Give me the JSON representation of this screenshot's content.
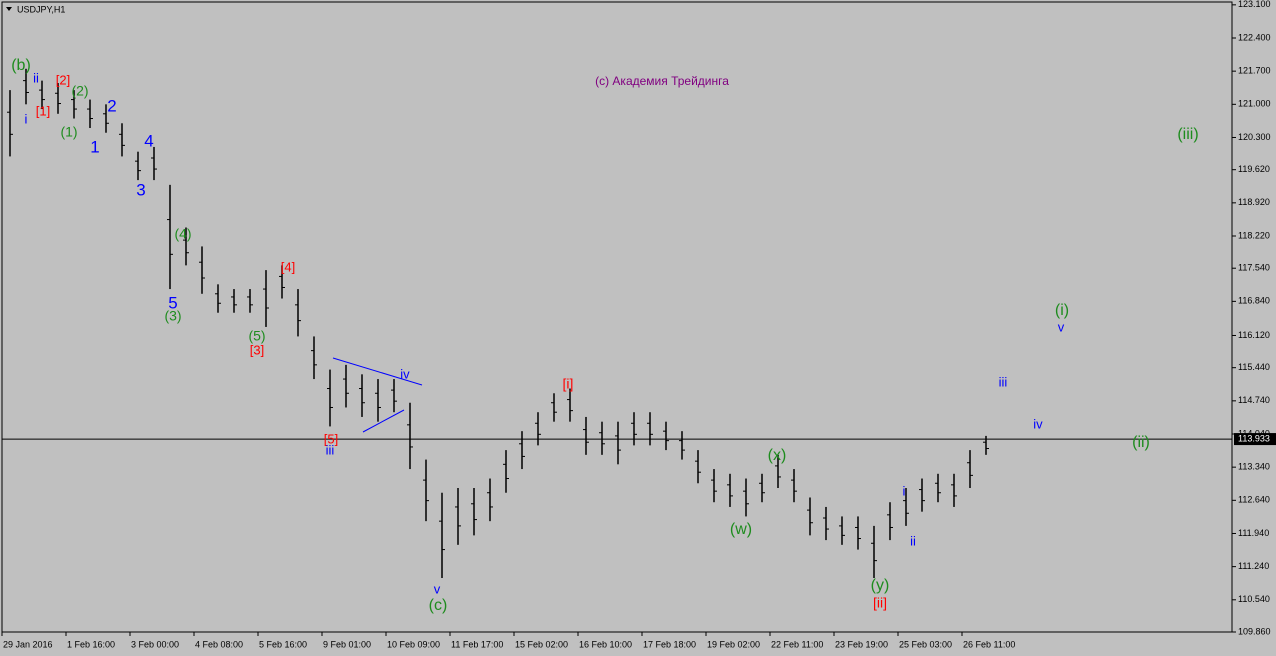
{
  "chart_data": {
    "type": "hlbar",
    "title": "USDJPY,H1",
    "color": "#000000",
    "xlim": [
      0,
      76.875
    ],
    "xticks": [
      {
        "value": 0,
        "label": "29 Jan 2016"
      },
      {
        "value": 4,
        "label": "1 Feb 16:00"
      },
      {
        "value": 8,
        "label": "3 Feb 00:00"
      },
      {
        "value": 12,
        "label": "4 Feb 08:00"
      },
      {
        "value": 16,
        "label": "5 Feb 16:00"
      },
      {
        "value": 20,
        "label": "9 Feb 01:00"
      },
      {
        "value": 24,
        "label": "10 Feb 09:00"
      },
      {
        "value": 28,
        "label": "11 Feb 17:00"
      },
      {
        "value": 32,
        "label": "15 Feb 02:00"
      },
      {
        "value": 36,
        "label": "16 Feb 10:00"
      },
      {
        "value": 40,
        "label": "17 Feb 18:00"
      },
      {
        "value": 44,
        "label": "19 Feb 02:00"
      },
      {
        "value": 48,
        "label": "22 Feb 11:00"
      },
      {
        "value": 52,
        "label": "23 Feb 19:00"
      },
      {
        "value": 56,
        "label": "25 Feb 03:00"
      },
      {
        "value": 60,
        "label": "26 Feb 11:00"
      }
    ],
    "ylim": [
      109.86,
      123.16
    ],
    "yticks": [
      {
        "value": 123.1,
        "label": "123.100"
      },
      {
        "value": 122.4,
        "label": "122.400"
      },
      {
        "value": 121.7,
        "label": "121.700"
      },
      {
        "value": 121.0,
        "label": "121.000"
      },
      {
        "value": 120.3,
        "label": "120.300"
      },
      {
        "value": 119.62,
        "label": "119.620"
      },
      {
        "value": 118.92,
        "label": "118.920"
      },
      {
        "value": 118.22,
        "label": "118.220"
      },
      {
        "value": 117.54,
        "label": "117.540"
      },
      {
        "value": 116.84,
        "label": "116.840"
      },
      {
        "value": 116.12,
        "label": "116.120"
      },
      {
        "value": 115.44,
        "label": "115.440"
      },
      {
        "value": 114.74,
        "label": "114.740"
      },
      {
        "value": 114.04,
        "label": "114.040"
      },
      {
        "value": 113.34,
        "label": "113.340"
      },
      {
        "value": 112.64,
        "label": "112.640"
      },
      {
        "value": 111.94,
        "label": "111.940"
      },
      {
        "value": 111.24,
        "label": "111.240"
      },
      {
        "value": 110.54,
        "label": "110.540"
      },
      {
        "value": 109.86,
        "label": "109.860"
      }
    ],
    "high": [
      121.3,
      121.75,
      121.5,
      121.45,
      121.3,
      121.1,
      121.0,
      120.6,
      120.0,
      120.1,
      119.3,
      118.4,
      118.0,
      117.2,
      117.1,
      117.1,
      117.5,
      117.6,
      117.1,
      116.1,
      115.4,
      115.5,
      115.3,
      115.2,
      115.2,
      114.7,
      113.5,
      112.8,
      112.9,
      112.9,
      113.1,
      113.7,
      114.1,
      114.5,
      114.9,
      115.0,
      114.4,
      114.3,
      114.3,
      114.5,
      114.5,
      114.3,
      114.1,
      113.7,
      113.3,
      113.2,
      113.1,
      113.2,
      113.6,
      113.3,
      112.7,
      112.5,
      112.3,
      112.3,
      112.1,
      112.6,
      112.9,
      113.1,
      113.2,
      113.2,
      113.7,
      114.0
    ],
    "low": [
      119.9,
      121.0,
      120.9,
      120.8,
      120.7,
      120.5,
      120.4,
      119.9,
      119.4,
      119.4,
      117.1,
      117.6,
      117.0,
      116.6,
      116.6,
      116.6,
      116.3,
      116.9,
      116.1,
      115.2,
      114.2,
      114.6,
      114.4,
      114.3,
      114.5,
      113.3,
      112.2,
      111.0,
      111.7,
      111.9,
      112.2,
      112.8,
      113.3,
      113.8,
      114.3,
      114.3,
      113.6,
      113.6,
      113.4,
      113.8,
      113.8,
      113.7,
      113.5,
      113.0,
      112.6,
      112.5,
      112.3,
      112.6,
      112.9,
      112.6,
      111.9,
      111.8,
      111.7,
      111.6,
      111.0,
      111.8,
      112.1,
      112.4,
      112.6,
      112.5,
      112.9,
      113.6
    ],
    "last_price": 113.933,
    "annotations": [
      {
        "text": "(b)",
        "color": "#1e8c1e"
      },
      {
        "text": "ii",
        "color": "#0000ff"
      },
      {
        "text": "[2]",
        "color": "#ff0000"
      },
      {
        "text": "(2)",
        "color": "#1e8c1e"
      },
      {
        "text": "2",
        "color": "#0000ff"
      },
      {
        "text": "[1]",
        "color": "#ff0000"
      },
      {
        "text": "i",
        "color": "#0000ff"
      },
      {
        "text": "(1)",
        "color": "#1e8c1e"
      },
      {
        "text": "1",
        "color": "#0000ff"
      },
      {
        "text": "4",
        "color": "#0000ff"
      },
      {
        "text": "3",
        "color": "#0000ff"
      },
      {
        "text": "(4)",
        "color": "#1e8c1e"
      },
      {
        "text": "5",
        "color": "#0000ff"
      },
      {
        "text": "(3)",
        "color": "#1e8c1e"
      },
      {
        "text": "[4]",
        "color": "#ff0000"
      },
      {
        "text": "(5)",
        "color": "#1e8c1e"
      },
      {
        "text": "[3]",
        "color": "#ff0000"
      },
      {
        "text": "iv",
        "color": "#0000ff"
      },
      {
        "text": "[5]",
        "color": "#ff0000"
      },
      {
        "text": "iii",
        "color": "#0000ff"
      },
      {
        "text": "v",
        "color": "#0000ff"
      },
      {
        "text": "(c)",
        "color": "#1e8c1e"
      },
      {
        "text": "[i]",
        "color": "#ff0000"
      },
      {
        "text": "(x)",
        "color": "#1e8c1e"
      },
      {
        "text": "(w)",
        "color": "#1e8c1e"
      },
      {
        "text": "i",
        "color": "#0000ff"
      },
      {
        "text": "ii",
        "color": "#0000ff"
      },
      {
        "text": "(y)",
        "color": "#1e8c1e"
      },
      {
        "text": "[ii]",
        "color": "#ff0000"
      },
      {
        "text": "iii",
        "color": "#0000ff"
      },
      {
        "text": "(i)",
        "color": "#1e8c1e"
      },
      {
        "text": "v",
        "color": "#0000ff"
      },
      {
        "text": "iv",
        "color": "#0000ff"
      },
      {
        "text": "(ii)",
        "color": "#1e8c1e"
      },
      {
        "text": "(iii)",
        "color": "#1e8c1e"
      },
      {
        "text": "(c) Академия Трейдинга",
        "color": "#800080"
      }
    ]
  }
}
